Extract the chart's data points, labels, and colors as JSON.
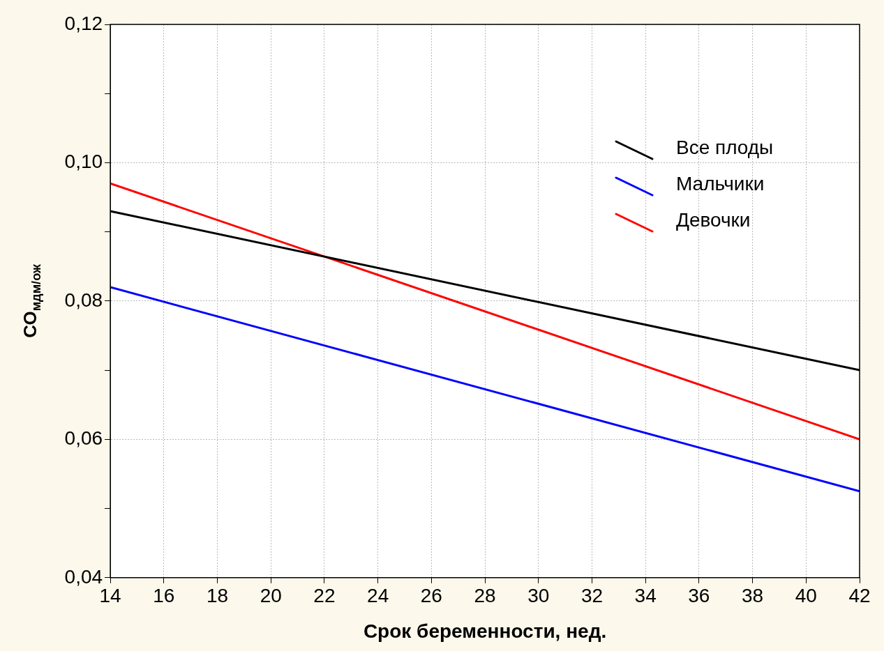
{
  "chart_data": {
    "type": "line",
    "xlabel": "Срок беременности, нед.",
    "ylabel": "СО$_{мдм/ож}$",
    "x": [
      14,
      42
    ],
    "series": [
      {
        "name": "Все плоды",
        "color": "#000000",
        "values": [
          0.093,
          0.07
        ]
      },
      {
        "name": "Мальчики",
        "color": "#0000ff",
        "values": [
          0.082,
          0.0525
        ]
      },
      {
        "name": "Девочки",
        "color": "#ff0000",
        "values": [
          0.097,
          0.06
        ]
      }
    ],
    "xlim": [
      14,
      42
    ],
    "xticks": [
      14,
      16,
      18,
      20,
      22,
      24,
      26,
      28,
      30,
      32,
      34,
      36,
      38,
      40,
      42
    ],
    "ylim": [
      0.04,
      0.12
    ],
    "yticks": [
      {
        "value": 0.04,
        "label": "0,04"
      },
      {
        "value": 0.05,
        "label": null
      },
      {
        "value": 0.06,
        "label": "0,06"
      },
      {
        "value": 0.07,
        "label": null
      },
      {
        "value": 0.08,
        "label": "0,08"
      },
      {
        "value": 0.09,
        "label": null
      },
      {
        "value": 0.1,
        "label": "0,10"
      },
      {
        "value": 0.11,
        "label": null
      },
      {
        "value": 0.12,
        "label": "0,12"
      }
    ],
    "grid": true,
    "legend": "top right",
    "marker": "none",
    "line_style": "solid"
  }
}
